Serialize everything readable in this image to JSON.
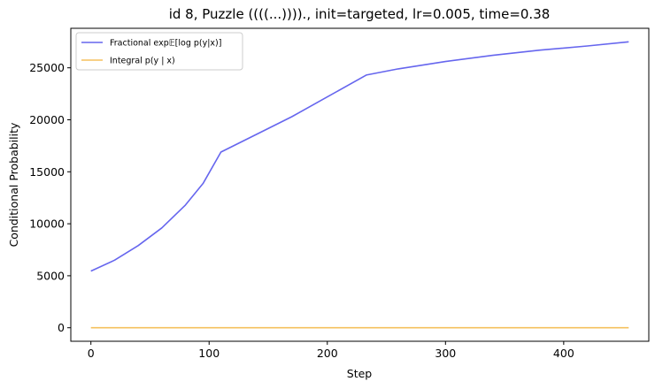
{
  "chart_data": {
    "type": "line",
    "title": "id 8, Puzzle ((((...)))).,  init=targeted, lr=0.005, time=0.38",
    "xlabel": "Step",
    "ylabel": "Conditional Probability",
    "xlim": [
      -17,
      472
    ],
    "ylim": [
      -1300,
      28800
    ],
    "xticks": [
      0,
      100,
      200,
      300,
      400
    ],
    "yticks": [
      0,
      5000,
      10000,
      15000,
      20000,
      25000
    ],
    "grid": false,
    "legend_position": "upper-left",
    "series": [
      {
        "name": "Fractional exp𝔼[log p(y|x)]",
        "color": "#6666ee",
        "x": [
          0,
          20,
          40,
          60,
          80,
          95,
          110,
          140,
          170,
          200,
          233,
          260,
          300,
          340,
          380,
          420,
          455
        ],
        "y": [
          5450,
          6500,
          7900,
          9600,
          11800,
          13900,
          16900,
          18600,
          20300,
          22200,
          24300,
          24900,
          25600,
          26200,
          26700,
          27100,
          27500
        ]
      },
      {
        "name": "Integral p(y | x)",
        "color": "#f5c15e",
        "x": [
          0,
          455
        ],
        "y": [
          0,
          0
        ]
      }
    ]
  }
}
